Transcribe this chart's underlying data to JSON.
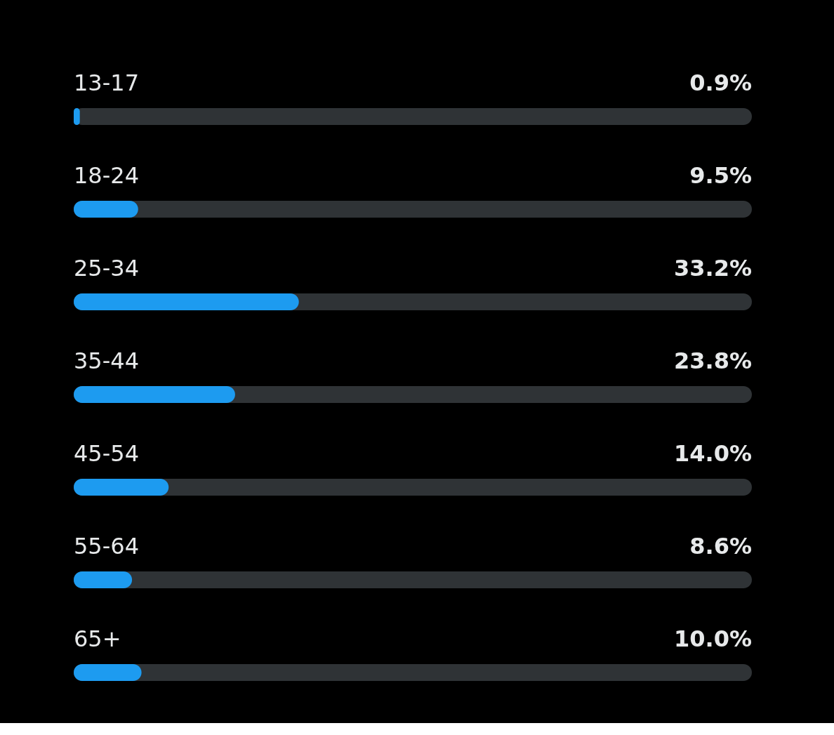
{
  "chart_data": {
    "type": "bar",
    "orientation": "horizontal",
    "categories": [
      "13-17",
      "18-24",
      "25-34",
      "35-44",
      "45-54",
      "55-64",
      "65+"
    ],
    "values": [
      0.9,
      9.5,
      33.2,
      23.8,
      14.0,
      8.6,
      10.0
    ],
    "value_labels": [
      "0.9%",
      "9.5%",
      "33.2%",
      "23.8%",
      "14.0%",
      "8.6%",
      "10.0%"
    ],
    "color": "#1d9bf0",
    "xlim": [
      0,
      100
    ],
    "tick_labels": false
  }
}
